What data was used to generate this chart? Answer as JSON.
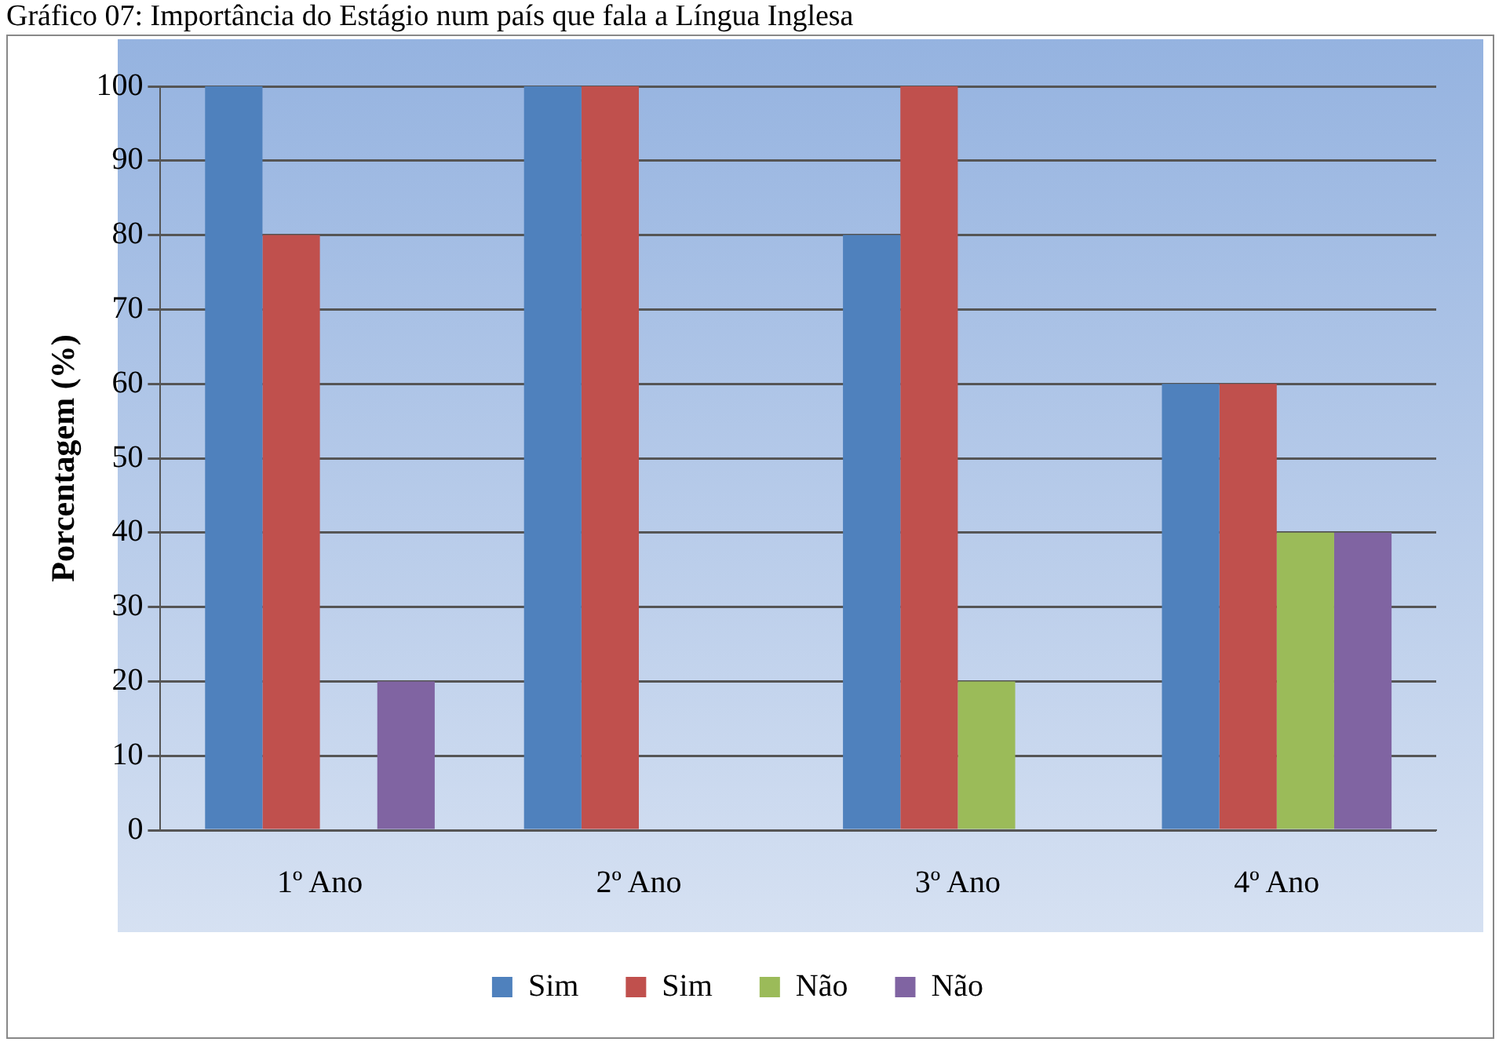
{
  "chart_data": {
    "type": "bar",
    "title": "Gráfico 07: Importância do Estágio num país que fala a Língua Inglesa",
    "ylabel": "Porcentagem (%)",
    "categories": [
      "1º Ano",
      "2º Ano",
      "3º Ano",
      "4º Ano"
    ],
    "series": [
      {
        "name": "Sim",
        "color": "#4f81bd",
        "values": [
          100,
          100,
          80,
          60
        ]
      },
      {
        "name": "Sim",
        "color": "#c0504d",
        "values": [
          80,
          100,
          100,
          60
        ]
      },
      {
        "name": "Não",
        "color": "#9bbb59",
        "values": [
          0,
          0,
          20,
          40
        ]
      },
      {
        "name": "Não",
        "color": "#8064a2",
        "values": [
          20,
          0,
          0,
          40
        ]
      }
    ],
    "ylim": [
      0,
      100
    ],
    "yticks": [
      0,
      10,
      20,
      30,
      40,
      50,
      60,
      70,
      80,
      90,
      100
    ],
    "grid": "y",
    "legend": "bottom"
  }
}
